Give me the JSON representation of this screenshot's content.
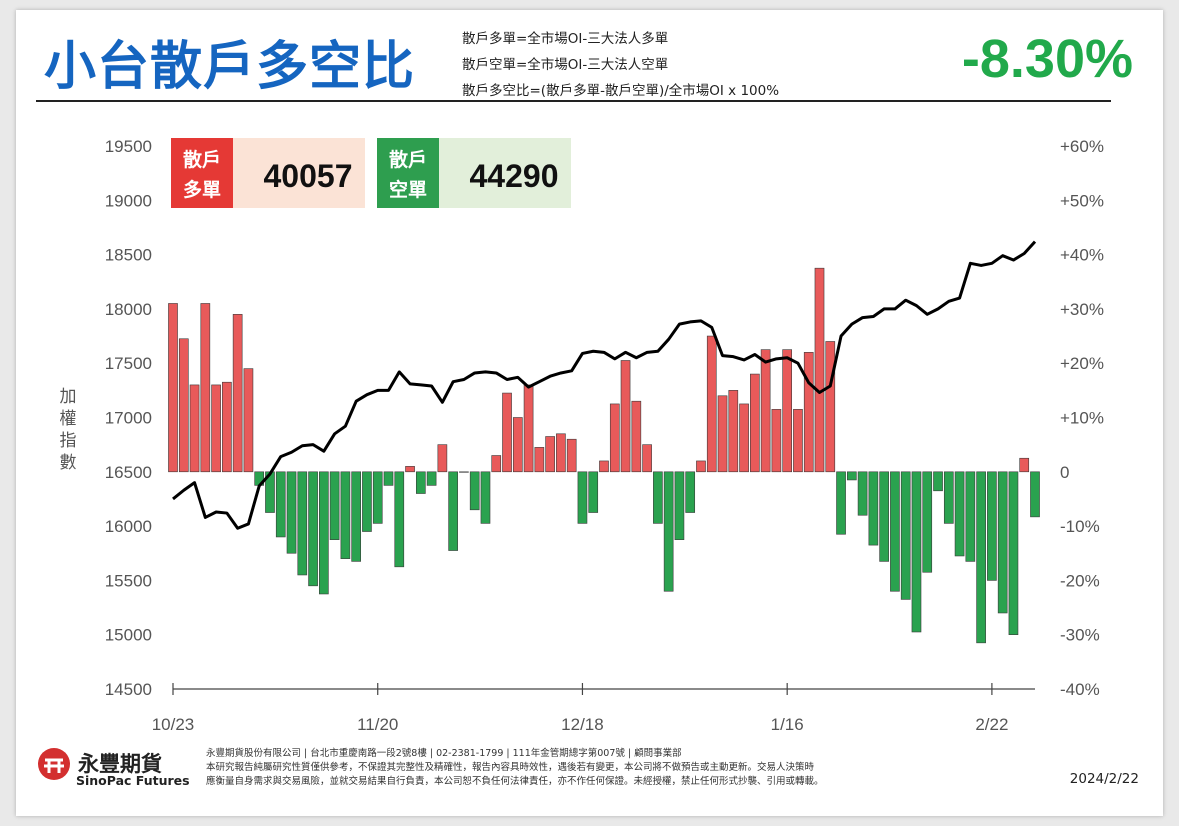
{
  "header": {
    "title": "小台散戶多空比",
    "definitions": [
      "散戶多單=全市場OI-三大法人多單",
      "散戶空單=全市場OI-三大法人空單",
      "散戶多空比=(散戶多單-散戶空單)/全市場OI x 100%"
    ],
    "ratio": "-8.30%"
  },
  "boxes": {
    "long_label": "散戶多單",
    "long_label_l1": "散戶",
    "long_label_l2": "多單",
    "long_value": "40057",
    "short_label": "散戶空單",
    "short_label_l1": "散戶",
    "short_label_l2": "空單",
    "short_value": "44290"
  },
  "colors": {
    "title": "#1565c0",
    "ratio": "#21a94b",
    "bar_up": "#e85a5a",
    "bar_down": "#2aa24f",
    "line": "#000000",
    "long_box": "#e53935",
    "long_box_bg": "#fbe3d6",
    "short_box": "#2e9e4f",
    "short_box_bg": "#e2efda"
  },
  "chart_data": {
    "type": "bar+line",
    "ylabel": "加權指數",
    "ylabel_chars": [
      "加",
      "權",
      "指",
      "數"
    ],
    "y_left_ticks": [
      "19500",
      "19000",
      "18500",
      "18000",
      "17500",
      "17000",
      "16500",
      "16000",
      "15500",
      "15000",
      "14500"
    ],
    "y_left_range": [
      14500,
      19500
    ],
    "y_right_ticks": [
      "+60%",
      "+50%",
      "+40%",
      "+30%",
      "+20%",
      "+10%",
      "0",
      "-10%",
      "-20%",
      "-30%",
      "-40%"
    ],
    "y_right_range": [
      -40,
      60
    ],
    "x_tick_labels": [
      "10/23",
      "11/20",
      "12/18",
      "1/16",
      "2/22"
    ],
    "x_tick_index": [
      0,
      19,
      38,
      57,
      76
    ],
    "series": [
      {
        "kind": "bar",
        "axis": "right",
        "values": [
          31,
          24.5,
          16,
          31,
          16,
          16.5,
          29,
          19,
          -2.5,
          -7.5,
          -12,
          -15,
          -19,
          -21,
          -22.5,
          -12.5,
          -16,
          -16.5,
          -11,
          -9.5,
          -2.5,
          -17.5,
          1,
          -4,
          -2.5,
          5,
          -14.5,
          0,
          -7,
          -9.5,
          3,
          14.5,
          10,
          16,
          4.5,
          6.5,
          7,
          6,
          -9.5,
          -7.5,
          2,
          12.5,
          20.5,
          13,
          5,
          -9.5,
          -22,
          -12.5,
          -7.5,
          2,
          25,
          14,
          15,
          12.5,
          18,
          22.5,
          11.5,
          22.5,
          11.5,
          22,
          37.5,
          24,
          -11.5,
          -1.5,
          -8,
          -13.5,
          -16.5,
          -22,
          -23.5,
          -29.5,
          -18.5,
          -3.5,
          -9.5,
          -15.5,
          -16.5,
          -31.5,
          -20,
          -26,
          -30,
          2.5,
          -8.3
        ]
      },
      {
        "kind": "line",
        "axis": "left",
        "values": [
          16250,
          16330,
          16400,
          16080,
          16130,
          16120,
          15980,
          16020,
          16370,
          16480,
          16640,
          16680,
          16740,
          16750,
          16690,
          16850,
          16920,
          17150,
          17210,
          17250,
          17250,
          17420,
          17310,
          17300,
          17290,
          17140,
          17330,
          17350,
          17410,
          17420,
          17410,
          17350,
          17370,
          17280,
          17330,
          17380,
          17410,
          17430,
          17590,
          17610,
          17600,
          17540,
          17600,
          17550,
          17600,
          17610,
          17720,
          17860,
          17880,
          17890,
          17830,
          17570,
          17560,
          17530,
          17580,
          17510,
          17540,
          17550,
          17500,
          17320,
          17230,
          17290,
          17750,
          17860,
          17920,
          17930,
          18000,
          18000,
          18080,
          18030,
          17950,
          18000,
          18070,
          18100,
          18420,
          18400,
          18420,
          18490,
          18450,
          18510,
          18620
        ]
      }
    ]
  },
  "footer": {
    "company_zh": "永豐期貨",
    "company_en": "SinoPac Futures",
    "disclaimer_1": "永豐期貨股份有限公司 | 台北市重慶南路一段2號8樓 | 02-2381-1799 | 111年金管期總字第007號 | 顧問事業部",
    "disclaimer_2": "本研究報告純屬研究性質僅供參考，不保證其完整性及精確性，報告內容具時效性，遇後若有變更，本公司將不做預告或主動更新。交易人決策時",
    "disclaimer_3": "應衡量自身需求與交易風險，並就交易結果自行負責，本公司恕不負任何法律責任，亦不作任何保證。未經授權，禁止任何形式抄襲、引用或轉載。",
    "date": "2024/2/22"
  }
}
